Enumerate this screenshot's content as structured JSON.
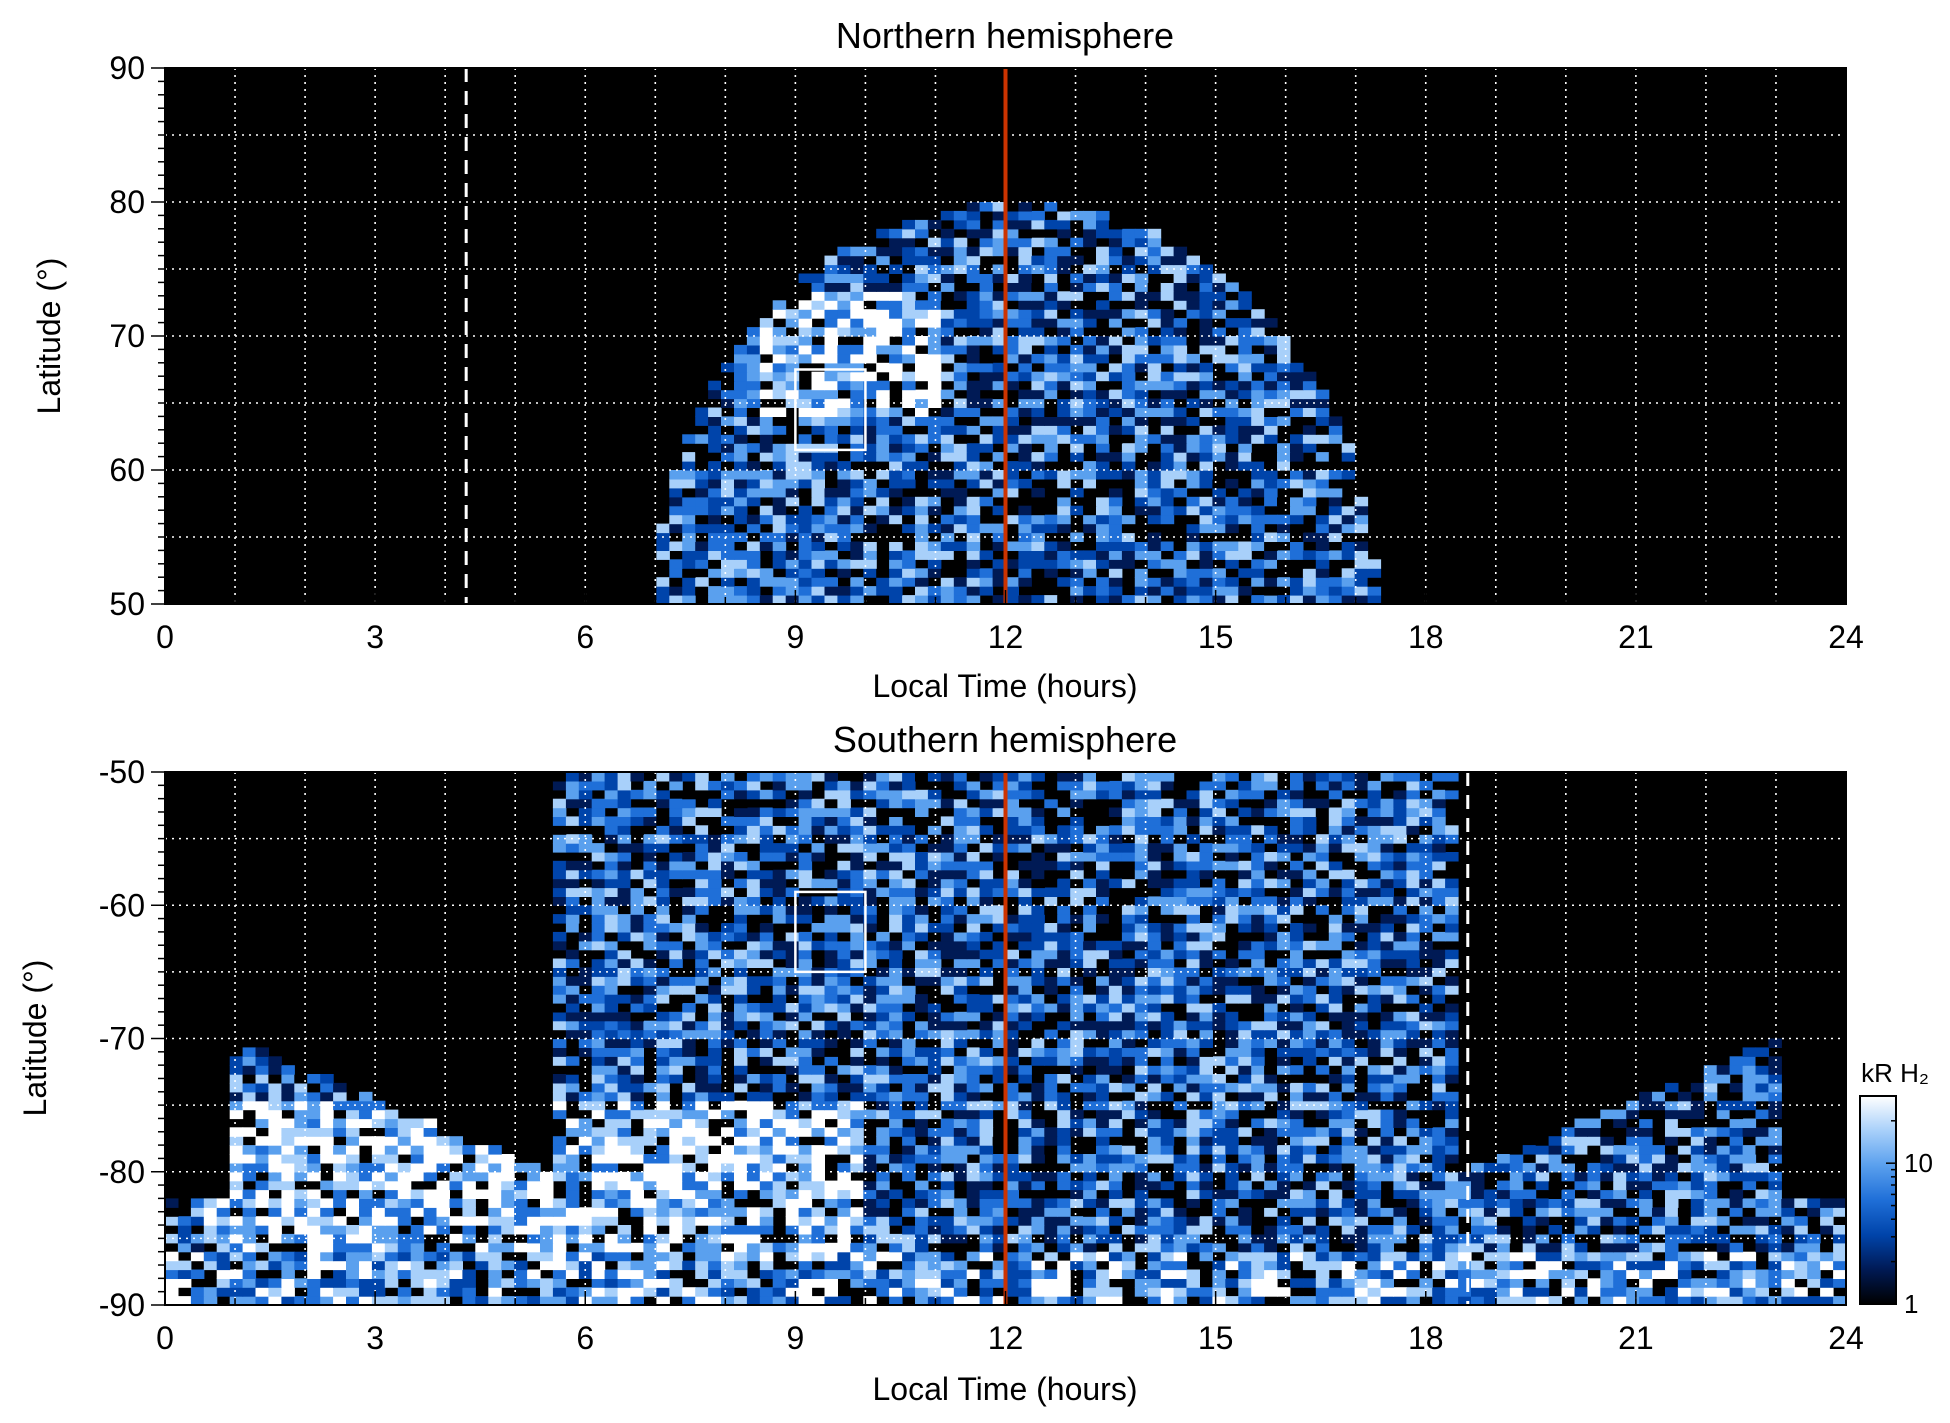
{
  "chart_data": [
    {
      "type": "heatmap",
      "title": "Northern hemisphere",
      "xlabel": "Local Time (hours)",
      "ylabel": "Latitude (°)",
      "xlim": [
        0,
        24
      ],
      "ylim": [
        50,
        90
      ],
      "xticks": [
        0,
        3,
        6,
        9,
        12,
        15,
        18,
        21,
        24
      ],
      "yticks": [
        50,
        60,
        70,
        80,
        90
      ],
      "grid": true,
      "emission_extent_lt": [
        7.0,
        17.3
      ],
      "emission_max_lat": 80,
      "bright_region": {
        "lt": [
          8.5,
          11.0
        ],
        "lat": [
          64,
          73
        ]
      },
      "box_marker": {
        "lt": [
          9.0,
          10.0
        ],
        "lat": [
          61.5,
          67.5
        ]
      },
      "red_line_lt": 12,
      "dashed_line_lt": 4.3
    },
    {
      "type": "heatmap",
      "title": "Southern hemisphere",
      "xlabel": "Local Time (hours)",
      "ylabel": "Latitude (°)",
      "xlim": [
        0,
        24
      ],
      "ylim": [
        -90,
        -50
      ],
      "xticks": [
        0,
        3,
        6,
        9,
        12,
        15,
        18,
        21,
        24
      ],
      "yticks": [
        -90,
        -80,
        -70,
        -60,
        -50
      ],
      "grid": true,
      "emission_extent_lt": [
        0,
        24
      ],
      "bright_region": {
        "lt": [
          0.5,
          10.0
        ],
        "lat": [
          -88,
          -75
        ]
      },
      "box_marker": {
        "lt": [
          9.0,
          10.0
        ],
        "lat": [
          -65,
          -59
        ]
      },
      "red_line_lt": 12,
      "dashed_line_lt": 18.6
    }
  ],
  "colorbar": {
    "label": "kR H₂",
    "scale": "log",
    "ticks": [
      1,
      10
    ],
    "range": [
      1,
      30
    ],
    "colors": [
      "#000000",
      "#001a55",
      "#0044aa",
      "#1f6fd8",
      "#5aa0ee",
      "#a8d0fa",
      "#ffffff"
    ]
  },
  "colors": {
    "background": "#000000",
    "grid": "#ffffff",
    "noon_line": "#cc3300",
    "emission": "#1f6fd8"
  }
}
